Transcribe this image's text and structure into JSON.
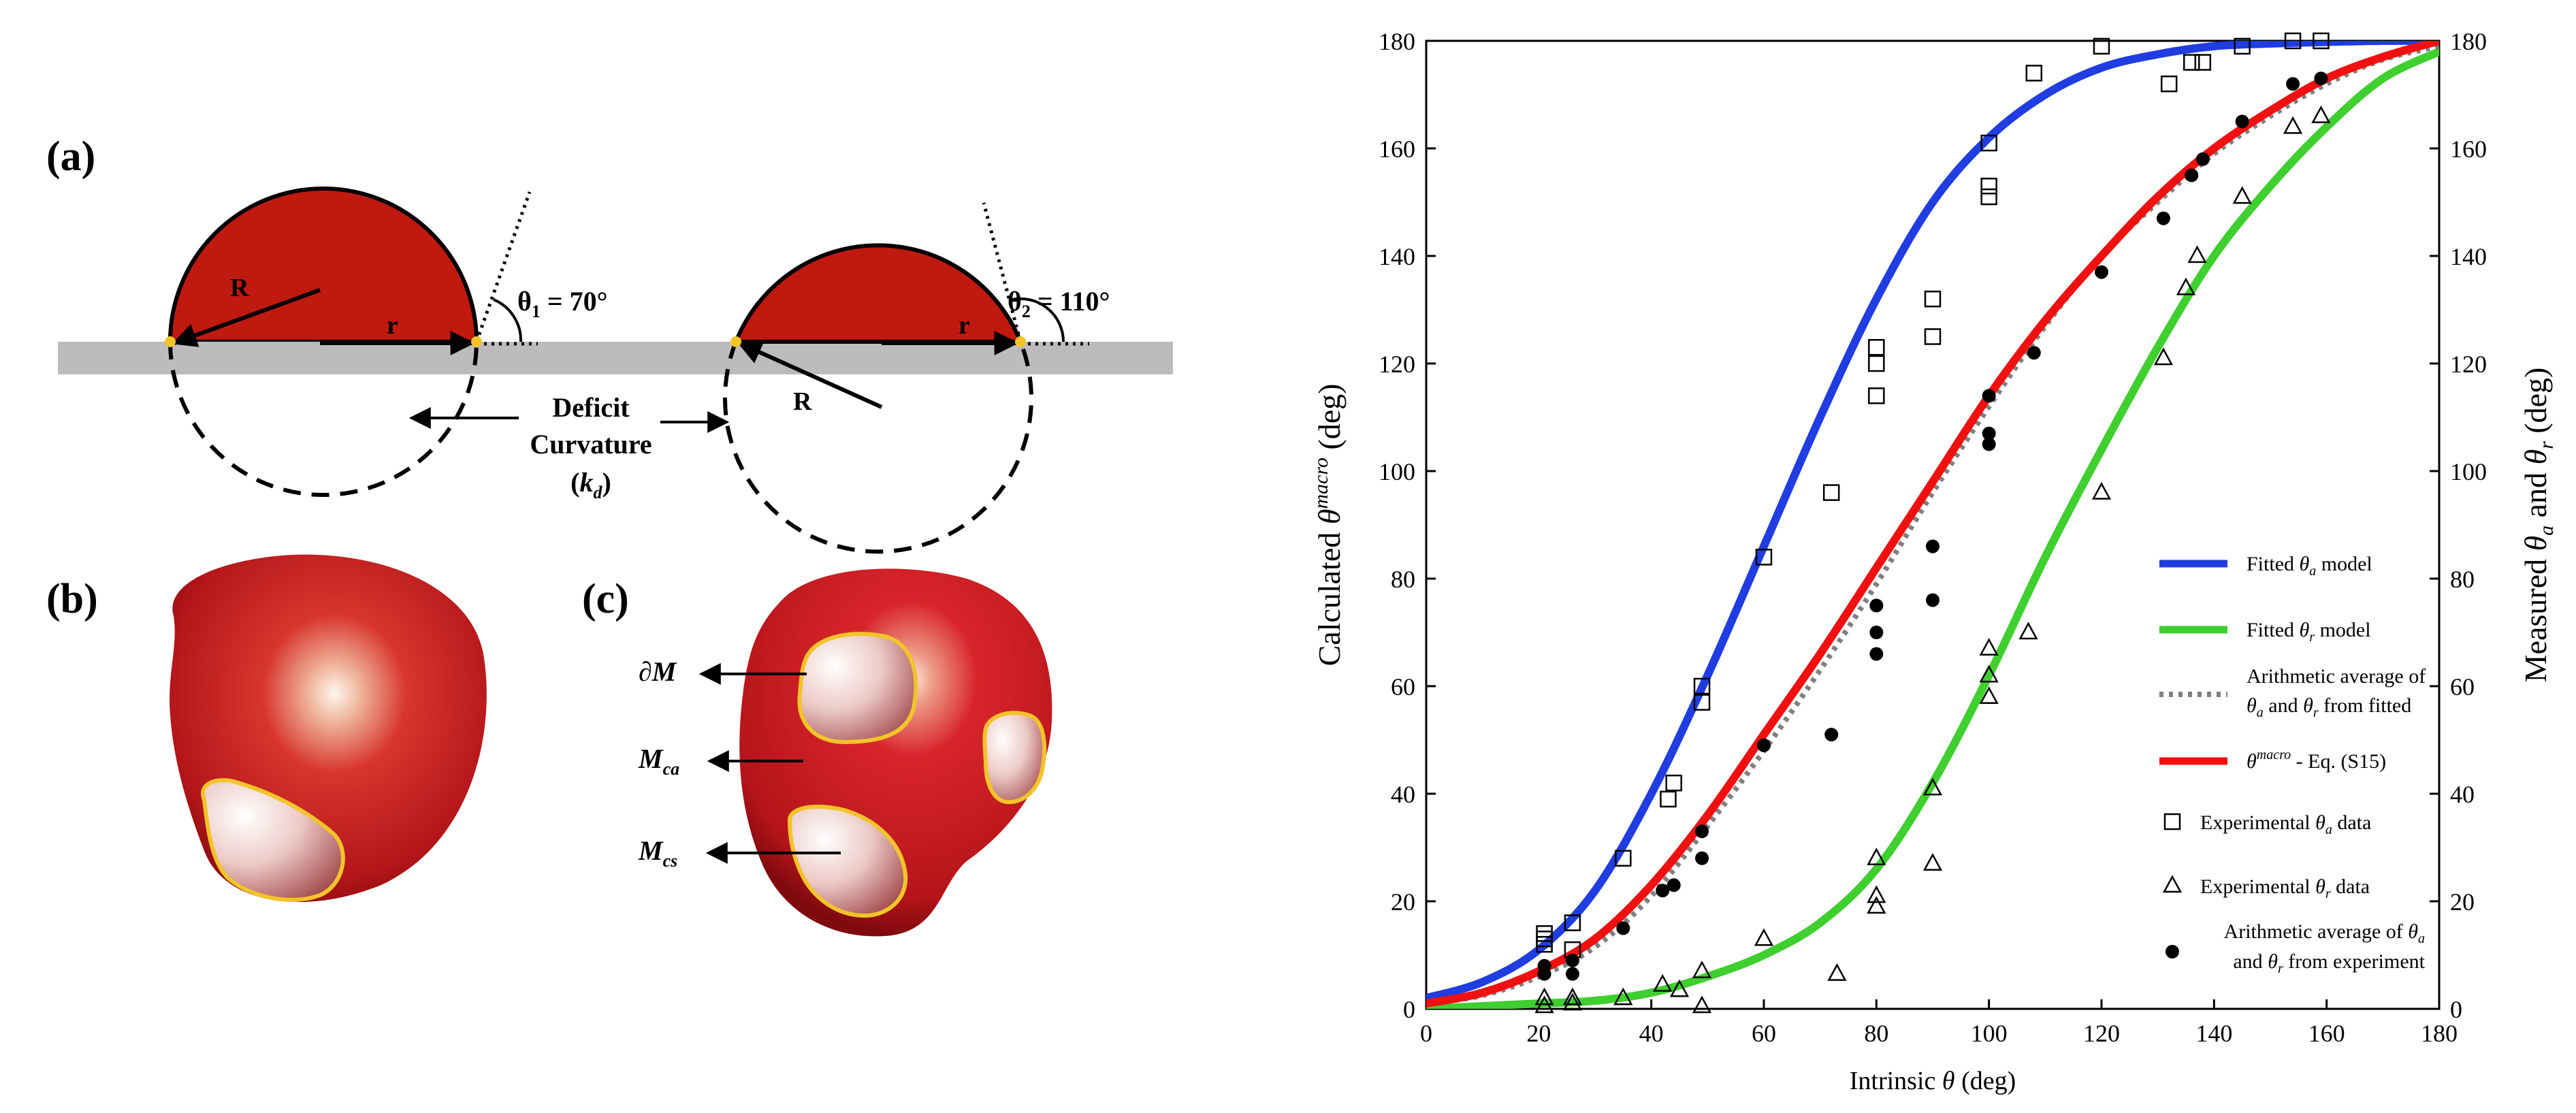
{
  "panels": {
    "a_label": "(a)",
    "b_label": "(b)",
    "c_label": "(c)",
    "a": {
      "left_R": "R",
      "left_r": "r",
      "theta1_sym": "θ",
      "theta1_sub": "1",
      "theta1_val": " = 70°",
      "right_R": "R",
      "right_r": "r",
      "theta2_sym": "θ",
      "theta2_sub": "2",
      "theta2_val": " = 110°",
      "deficit_line1": "Deficit",
      "deficit_line2": "Curvature",
      "deficit_open": "(",
      "deficit_k": "k",
      "deficit_sub": "d",
      "deficit_close": ")"
    },
    "c": {
      "boundary": "∂M",
      "mca_M": "M",
      "mca_sub": "ca",
      "mcs_M": "M",
      "mcs_sub": "cs"
    }
  },
  "colors": {
    "drop_red": "#c0190f",
    "surface_gray": "#bdbbbb",
    "blue": "#1f3de0",
    "green": "#3fcf2f",
    "red": "#f01010",
    "dotted": "#808080",
    "patch_outline": "#f2c42a"
  },
  "chart_data": {
    "type": "scatter",
    "xlabel_prefix": "Intrinsic ",
    "xlabel_sym": "θ",
    "xlabel_suffix": " (deg)",
    "ylabel_left_prefix": "Calculated ",
    "ylabel_left_sym": "θ",
    "ylabel_left_sup": "macro",
    "ylabel_left_suffix": " (deg)",
    "ylabel_right_prefix": "Measured ",
    "ylabel_right_sym1": "θ",
    "ylabel_right_sub1": "a",
    "ylabel_right_mid": " and ",
    "ylabel_right_sym2": "θ",
    "ylabel_right_sub2": "r",
    "ylabel_right_suffix": " (deg)",
    "xlim": [
      0,
      180
    ],
    "ylim": [
      0,
      180
    ],
    "xticks": [
      "0",
      "20",
      "40",
      "60",
      "80",
      "100",
      "120",
      "140",
      "160",
      "180"
    ],
    "yticks": [
      "0",
      "20",
      "40",
      "60",
      "80",
      "100",
      "120",
      "140",
      "160",
      "180"
    ],
    "legend": [
      {
        "key": "blue",
        "text": "Fitted θa model"
      },
      {
        "key": "green",
        "text": "Fitted θr model"
      },
      {
        "key": "dotted",
        "text": "Arithmetic average of θa and θr from fitted"
      },
      {
        "key": "red",
        "text": "θmacro - Eq. (S15)"
      },
      {
        "key": "square",
        "text": "Experimental θa data"
      },
      {
        "key": "triangle",
        "text": "Experimental θr data"
      },
      {
        "key": "dot",
        "text": "Arithmetic average of θa and θr from experiment"
      }
    ],
    "legend_text": {
      "l1_pre": "Fitted ",
      "l1_sym": "θ",
      "l1_sub": "a",
      "l1_post": " model",
      "l2_pre": "Fitted ",
      "l2_sym": "θ",
      "l2_sub": "r",
      "l2_post": " model",
      "l3_a": "Arithmetic average of",
      "l3_b_sym1": "θ",
      "l3_b_sub1": "a",
      "l3_b_mid": " and ",
      "l3_b_sym2": "θ",
      "l3_b_sub2": "r",
      "l3_b_post": " from fitted",
      "l4_sym": "θ",
      "l4_sup": "macro",
      "l4_post": " - Eq. (S15)",
      "l5_pre": "Experimental ",
      "l5_sym": "θ",
      "l5_sub": "a",
      "l5_post": " data",
      "l6_pre": "Experimental ",
      "l6_sym": "θ",
      "l6_sub": "r",
      "l6_post": " data",
      "l7_a_pre": "Arithmetic average of ",
      "l7_a_sym": "θ",
      "l7_a_sub": "a",
      "l7_b_pre": "and ",
      "l7_b_sym": "θ",
      "l7_b_sub": "r",
      "l7_b_post": " from experiment"
    },
    "series": [
      {
        "name": "Fitted θa model",
        "color": "#1f3de0",
        "kind": "line",
        "x": [
          0,
          10,
          20,
          30,
          40,
          50,
          60,
          70,
          80,
          90,
          100,
          110,
          120,
          130,
          140,
          150,
          160,
          170,
          180
        ],
        "values": [
          2,
          5,
          11,
          22,
          40,
          62,
          86,
          110,
          132,
          150,
          162,
          170,
          175,
          177.5,
          179,
          179.5,
          179.8,
          180,
          180
        ]
      },
      {
        "name": "Fitted θr model",
        "color": "#3fcf2f",
        "kind": "line",
        "x": [
          0,
          10,
          20,
          30,
          40,
          50,
          60,
          70,
          80,
          90,
          100,
          110,
          120,
          130,
          140,
          150,
          160,
          170,
          180
        ],
        "values": [
          0,
          0.5,
          1,
          1.5,
          3,
          6,
          10,
          16,
          26,
          42,
          62,
          84,
          104,
          123,
          140,
          153,
          164,
          173,
          178
        ]
      },
      {
        "name": "Arithmetic average of θa and θr from fitted",
        "color": "#808080",
        "kind": "dotted",
        "x": [
          0,
          10,
          20,
          30,
          40,
          50,
          60,
          70,
          80,
          90,
          100,
          110,
          120,
          130,
          140,
          150,
          160,
          170,
          180
        ],
        "values": [
          1,
          2.5,
          6,
          11.5,
          21,
          34,
          48,
          63,
          79,
          96,
          112,
          127,
          140,
          150,
          159,
          166,
          172,
          176.5,
          179
        ]
      },
      {
        "name": "θmacro - Eq. (S15)",
        "color": "#f01010",
        "kind": "line",
        "x": [
          0,
          10,
          20,
          30,
          40,
          50,
          60,
          70,
          80,
          90,
          100,
          110,
          120,
          130,
          140,
          150,
          160,
          170,
          180
        ],
        "values": [
          1,
          3,
          7,
          13,
          23,
          36,
          51,
          66,
          82,
          98,
          114,
          128,
          140,
          151,
          160,
          167,
          173,
          177,
          180
        ]
      },
      {
        "name": "Experimental θa data",
        "kind": "square",
        "points": [
          [
            21,
            14
          ],
          [
            21,
            13
          ],
          [
            21,
            12
          ],
          [
            26,
            16
          ],
          [
            26,
            11
          ],
          [
            35,
            28
          ],
          [
            43,
            39
          ],
          [
            44,
            42
          ],
          [
            49,
            60
          ],
          [
            49,
            57
          ],
          [
            60,
            84
          ],
          [
            72,
            96
          ],
          [
            80,
            123
          ],
          [
            80,
            120
          ],
          [
            80,
            114
          ],
          [
            90,
            132
          ],
          [
            90,
            125
          ],
          [
            100,
            161
          ],
          [
            100,
            153
          ],
          [
            100,
            151
          ],
          [
            108,
            174
          ],
          [
            120,
            179
          ],
          [
            132,
            172
          ],
          [
            136,
            176
          ],
          [
            138,
            176
          ],
          [
            145,
            179
          ],
          [
            154,
            180
          ],
          [
            159,
            180
          ]
        ]
      },
      {
        "name": "Experimental θr data",
        "kind": "triangle",
        "points": [
          [
            21,
            2
          ],
          [
            21,
            0.5
          ],
          [
            26,
            2
          ],
          [
            26,
            1
          ],
          [
            35,
            2
          ],
          [
            42,
            4.5
          ],
          [
            45,
            3.5
          ],
          [
            49,
            7
          ],
          [
            49,
            0.5
          ],
          [
            60,
            13
          ],
          [
            73,
            6.5
          ],
          [
            80,
            28
          ],
          [
            80,
            21
          ],
          [
            80,
            19
          ],
          [
            90,
            41
          ],
          [
            90,
            27
          ],
          [
            100,
            67
          ],
          [
            100,
            62
          ],
          [
            100,
            58
          ],
          [
            107,
            70
          ],
          [
            120,
            96
          ],
          [
            131,
            121
          ],
          [
            135,
            134
          ],
          [
            137,
            140
          ],
          [
            145,
            151
          ],
          [
            154,
            164
          ],
          [
            159,
            166
          ]
        ]
      },
      {
        "name": "Arithmetic average of θa and θr from experiment",
        "kind": "dot",
        "points": [
          [
            21,
            8
          ],
          [
            21,
            6.5
          ],
          [
            26,
            9
          ],
          [
            26,
            6.5
          ],
          [
            35,
            15
          ],
          [
            42,
            22
          ],
          [
            44,
            23
          ],
          [
            49,
            33
          ],
          [
            49,
            28
          ],
          [
            60,
            49
          ],
          [
            72,
            51
          ],
          [
            80,
            75
          ],
          [
            80,
            70
          ],
          [
            80,
            66
          ],
          [
            90,
            86
          ],
          [
            90,
            76
          ],
          [
            100,
            114
          ],
          [
            100,
            107
          ],
          [
            100,
            105
          ],
          [
            108,
            122
          ],
          [
            120,
            137
          ],
          [
            131,
            147
          ],
          [
            136,
            155
          ],
          [
            138,
            158
          ],
          [
            145,
            165
          ],
          [
            154,
            172
          ],
          [
            159,
            173
          ]
        ]
      }
    ]
  }
}
